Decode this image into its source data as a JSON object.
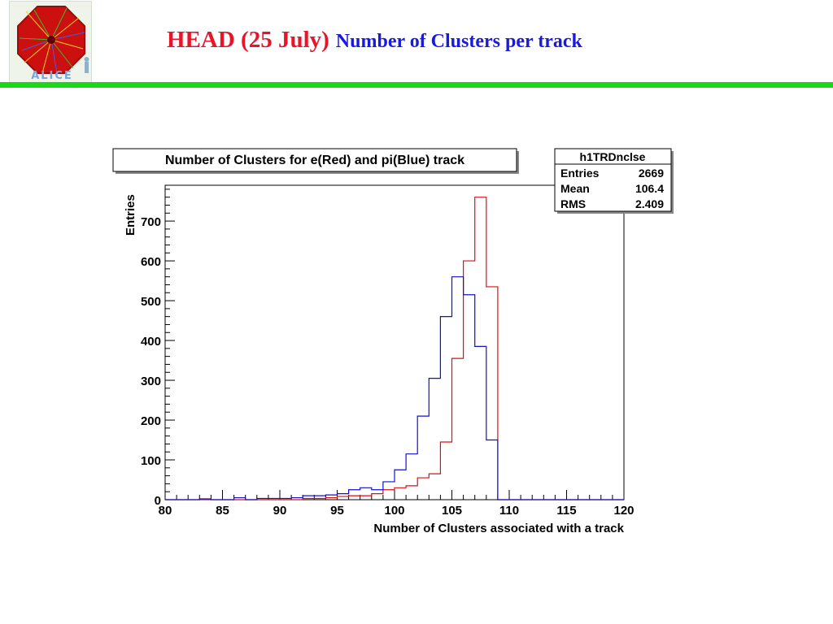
{
  "slide": {
    "title": "HEAD (25 July)",
    "subtitle": "Number of Clusters per track",
    "logo_text": "ALICE",
    "colors": {
      "title": "#e8142a",
      "subtitle": "#1a1adf",
      "rule": "#18d818"
    }
  },
  "chart_data": {
    "type": "line",
    "title": "Number of Clusters for e(Red) and pi(Blue) track",
    "xlabel": "Number of Clusters associated with a track",
    "ylabel": "Entries",
    "xlim": [
      80,
      120
    ],
    "ylim": [
      0,
      790
    ],
    "x_ticks": [
      80,
      85,
      90,
      95,
      100,
      105,
      110,
      115,
      120
    ],
    "y_ticks": [
      0,
      100,
      200,
      300,
      400,
      500,
      600,
      700
    ],
    "grid": false,
    "bin_edges": [
      80,
      81,
      82,
      83,
      84,
      85,
      86,
      87,
      88,
      89,
      90,
      91,
      92,
      93,
      94,
      95,
      96,
      97,
      98,
      99,
      100,
      101,
      102,
      103,
      104,
      105,
      106,
      107,
      108,
      109,
      110,
      111,
      112,
      113,
      114,
      115,
      116,
      117,
      118,
      119,
      120
    ],
    "series": [
      {
        "color": "#dd1111",
        "values": [
          0,
          0,
          0,
          0,
          0,
          0,
          0,
          0,
          0,
          0,
          0,
          0,
          3,
          3,
          5,
          8,
          10,
          10,
          15,
          25,
          30,
          35,
          55,
          65,
          145,
          355,
          600,
          760,
          535,
          0,
          0,
          0,
          0,
          0,
          0,
          0,
          0,
          0,
          0,
          0
        ]
      },
      {
        "color": "#1111cc",
        "values": [
          0,
          0,
          0,
          2,
          0,
          0,
          5,
          0,
          3,
          3,
          3,
          5,
          10,
          10,
          12,
          15,
          25,
          30,
          25,
          45,
          75,
          115,
          210,
          305,
          460,
          560,
          515,
          385,
          150,
          0,
          0,
          0,
          0,
          0,
          0,
          0,
          0,
          0,
          0,
          0
        ]
      }
    ],
    "stats": {
      "name": "h1TRDnclse",
      "rows": [
        {
          "label": "Entries",
          "value": "2669"
        },
        {
          "label": "Mean",
          "value": "106.4"
        },
        {
          "label": "RMS",
          "value": "2.409"
        }
      ]
    }
  }
}
